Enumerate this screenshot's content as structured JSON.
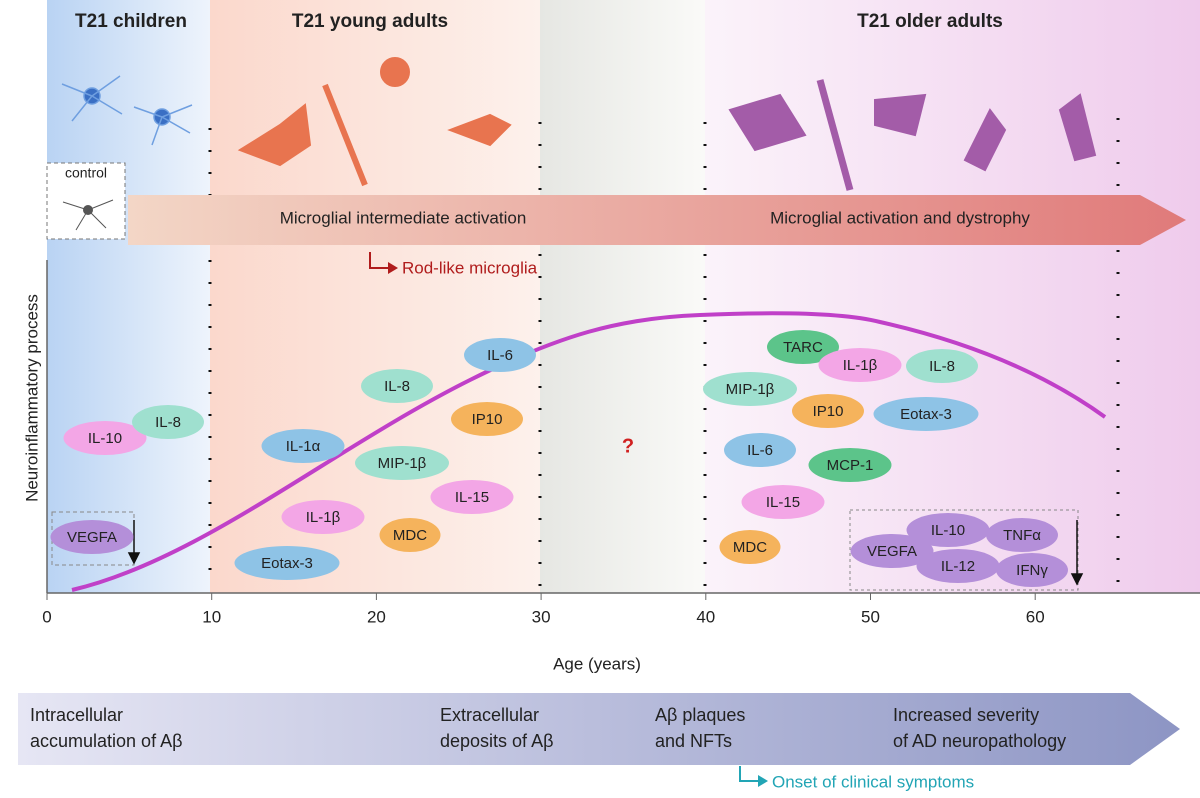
{
  "phases": [
    "T21 children",
    "T21 young adults",
    "T21 older adults"
  ],
  "control_label": "control",
  "activation_arrow": [
    "Microglial intermediate activation",
    "Microglial activation and dystrophy"
  ],
  "rod_note": "Rod-like microglia",
  "y_label": "Neuroinflammatory process",
  "x_label": "Age (years)",
  "x_ticks": [
    0,
    10,
    20,
    30,
    40,
    50,
    60
  ],
  "question": "?",
  "markers": [
    {
      "label": "IL-10",
      "color": "#f3a6e6"
    },
    {
      "label": "IL-8",
      "color": "#9fe0cf"
    },
    {
      "label": "VEGFA",
      "color": "#b48fd9"
    },
    {
      "label": "IL-1α",
      "color": "#8ec3e6"
    },
    {
      "label": "IL-8",
      "color": "#9fe0cf"
    },
    {
      "label": "MIP-1β",
      "color": "#9fe0cf"
    },
    {
      "label": "IL-1β",
      "color": "#f3a6e6"
    },
    {
      "label": "Eotax-3",
      "color": "#8ec3e6"
    },
    {
      "label": "MDC",
      "color": "#f5b35c"
    },
    {
      "label": "IL-15",
      "color": "#f3a6e6"
    },
    {
      "label": "IP10",
      "color": "#f5b35c"
    },
    {
      "label": "IL-6",
      "color": "#8ec3e6"
    },
    {
      "label": "TARC",
      "color": "#5cc48a"
    },
    {
      "label": "IL-1β",
      "color": "#f3a6e6"
    },
    {
      "label": "IL-8",
      "color": "#9fe0cf"
    },
    {
      "label": "MIP-1β",
      "color": "#9fe0cf"
    },
    {
      "label": "IP10",
      "color": "#f5b35c"
    },
    {
      "label": "Eotax-3",
      "color": "#8ec3e6"
    },
    {
      "label": "IL-6",
      "color": "#8ec3e6"
    },
    {
      "label": "MCP-1",
      "color": "#5cc48a"
    },
    {
      "label": "IL-15",
      "color": "#f3a6e6"
    },
    {
      "label": "MDC",
      "color": "#f5b35c"
    },
    {
      "label": "VEGFA",
      "color": "#b48fd9"
    },
    {
      "label": "IL-10",
      "color": "#b48fd9"
    },
    {
      "label": "IL-12",
      "color": "#b48fd9"
    },
    {
      "label": "TNFα",
      "color": "#b48fd9"
    },
    {
      "label": "IFNγ",
      "color": "#b48fd9"
    }
  ],
  "bottom_arrow": [
    [
      "Intracellular",
      "accumulation of Aβ"
    ],
    [
      "Extracellular",
      "deposits of Aβ"
    ],
    [
      "Aβ plaques",
      "and NFTs"
    ],
    [
      "Increased severity",
      "of AD neuropathology"
    ]
  ],
  "onset_note": "Onset of clinical symptoms"
}
